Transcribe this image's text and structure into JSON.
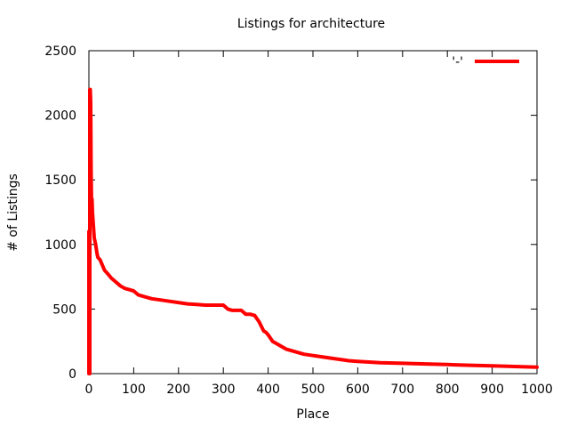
{
  "chart_data": {
    "type": "line",
    "title": "Listings for architecture",
    "xlabel": "Place",
    "ylabel": "# of Listings",
    "xlim": [
      0,
      1000
    ],
    "ylim": [
      0,
      2500
    ],
    "xticks": [
      0,
      100,
      200,
      300,
      400,
      500,
      600,
      700,
      800,
      900,
      1000
    ],
    "yticks": [
      0,
      500,
      1000,
      1500,
      2000,
      2500
    ],
    "xtick_labels": [
      "0",
      "100",
      "200",
      "300",
      "400",
      "500",
      "600",
      "700",
      "800",
      "900",
      "1000"
    ],
    "ytick_labels": [
      "0",
      "500",
      "1000",
      "1500",
      "2000",
      "2500"
    ],
    "grid": false,
    "legend_position": "top-right",
    "series": [
      {
        "name": "'-'",
        "color": "#ff0000",
        "x": [
          0,
          0,
          1,
          1,
          2,
          2,
          3,
          4,
          5,
          6,
          7,
          8,
          10,
          12,
          15,
          18,
          20,
          25,
          30,
          35,
          40,
          45,
          50,
          60,
          70,
          80,
          90,
          100,
          110,
          120,
          140,
          160,
          180,
          200,
          220,
          240,
          260,
          280,
          300,
          310,
          320,
          340,
          350,
          360,
          370,
          380,
          390,
          395,
          400,
          410,
          420,
          430,
          440,
          460,
          480,
          500,
          520,
          540,
          560,
          580,
          600,
          650,
          700,
          750,
          800,
          850,
          900,
          950,
          1000
        ],
        "y": [
          0,
          1100,
          1100,
          0,
          0,
          2200,
          2200,
          2100,
          1550,
          1300,
          1350,
          1250,
          1150,
          1050,
          1000,
          930,
          900,
          880,
          840,
          800,
          780,
          760,
          740,
          710,
          680,
          660,
          650,
          640,
          610,
          600,
          580,
          570,
          560,
          550,
          540,
          535,
          530,
          530,
          530,
          500,
          490,
          490,
          460,
          460,
          450,
          400,
          330,
          320,
          300,
          250,
          230,
          210,
          190,
          170,
          150,
          140,
          130,
          120,
          110,
          100,
          95,
          85,
          80,
          75,
          70,
          65,
          60,
          55,
          50
        ]
      }
    ]
  }
}
